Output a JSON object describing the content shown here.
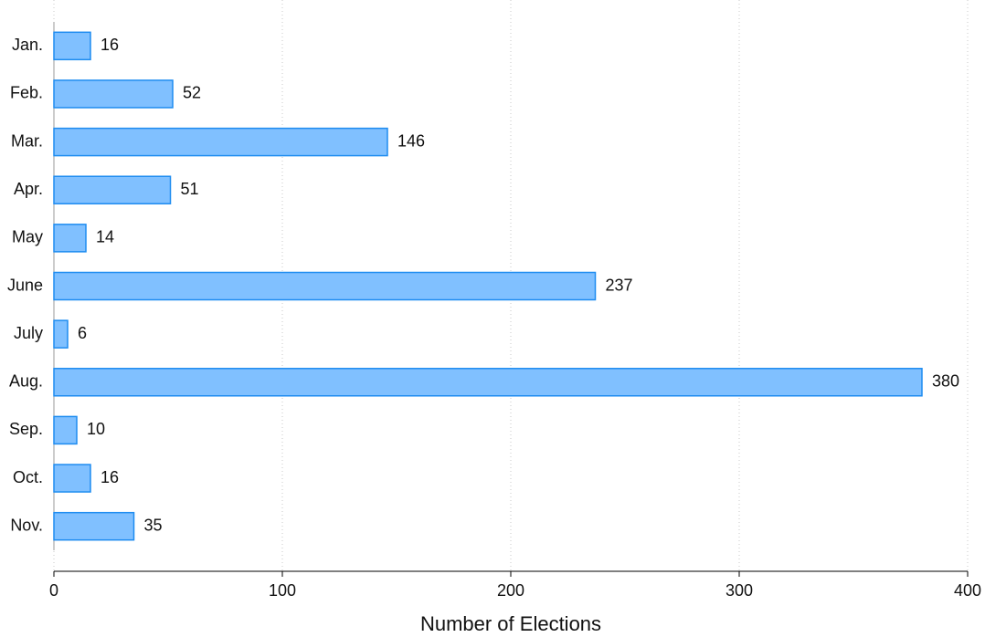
{
  "chart_data": {
    "type": "bar",
    "orientation": "horizontal",
    "xlabel": "Number of Elections",
    "categories": [
      "Jan.",
      "Feb.",
      "Mar.",
      "Apr.",
      "May",
      "June",
      "July",
      "Aug.",
      "Sep.",
      "Oct.",
      "Nov."
    ],
    "values": [
      16,
      52,
      146,
      51,
      14,
      237,
      6,
      380,
      10,
      16,
      35
    ],
    "color": "#80c0ff",
    "edge_color": "#1e8cf0",
    "xlim": [
      0,
      400
    ],
    "xticks": [
      0,
      100,
      200,
      300,
      400
    ],
    "grid": true
  }
}
